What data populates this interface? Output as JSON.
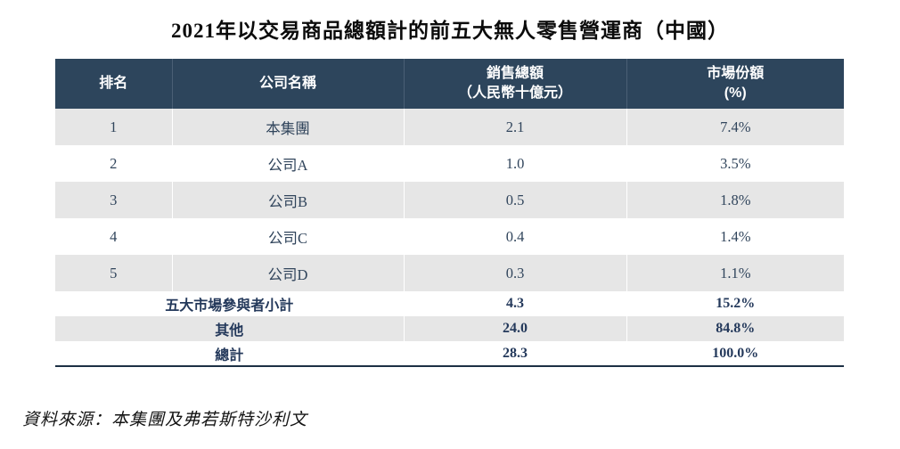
{
  "title": "2021年以交易商品總額計的前五大無人零售營運商（中國）",
  "table": {
    "headers": [
      {
        "line1": "排名",
        "line2": ""
      },
      {
        "line1": "公司名稱",
        "line2": ""
      },
      {
        "line1": "銷售總額",
        "line2": "（人民幣十億元）"
      },
      {
        "line1": "市場份額",
        "line2": "(%)"
      }
    ],
    "rows": [
      {
        "rank": "1",
        "company": "本集團",
        "sales": "2.1",
        "share": "7.4%"
      },
      {
        "rank": "2",
        "company": "公司A",
        "sales": "1.0",
        "share": "3.5%"
      },
      {
        "rank": "3",
        "company": "公司B",
        "sales": "0.5",
        "share": "1.8%"
      },
      {
        "rank": "4",
        "company": "公司C",
        "sales": "0.4",
        "share": "1.4%"
      },
      {
        "rank": "5",
        "company": "公司D",
        "sales": "0.3",
        "share": "1.1%"
      }
    ],
    "summary_rows": [
      {
        "label": "五大市場參與者小計",
        "sales": "4.3",
        "share": "15.2%"
      },
      {
        "label": "其他",
        "sales": "24.0",
        "share": "84.8%"
      },
      {
        "label": "總計",
        "sales": "28.3",
        "share": "100.0%"
      }
    ]
  },
  "source": "資料來源：本集團及弗若斯特沙利文",
  "colors": {
    "header_bg": "#2d455c",
    "header_text": "#ffffff",
    "row_alt_bg": "#e6e6e6",
    "row_bg": "#ffffff",
    "body_text": "#31455c",
    "summary_text": "#24395b",
    "bottom_border": "#1d3044"
  }
}
